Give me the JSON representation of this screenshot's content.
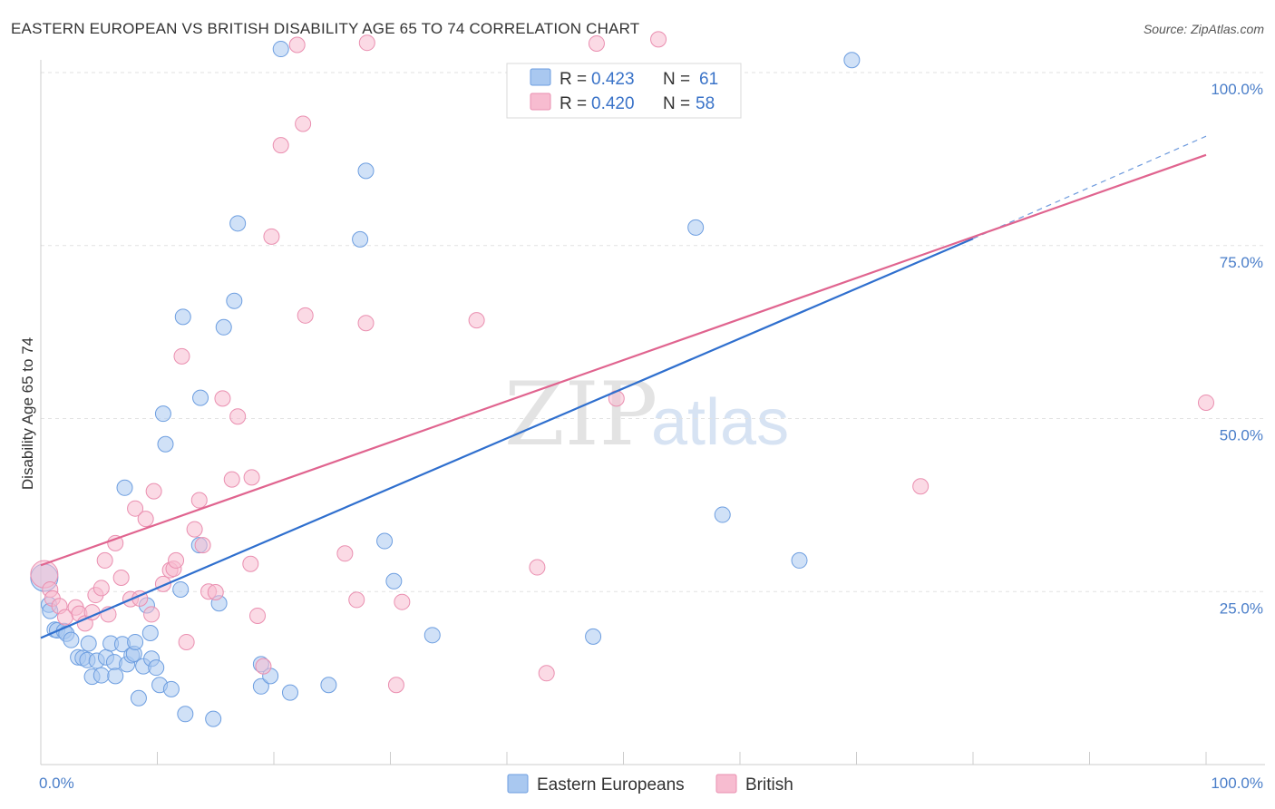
{
  "title": "EASTERN EUROPEAN VS BRITISH DISABILITY AGE 65 TO 74 CORRELATION CHART",
  "source": "Source: ZipAtlas.com",
  "watermark": {
    "part1": "ZIP",
    "part2": "atlas"
  },
  "legend_top": {
    "rows": [
      {
        "r_label": "R = ",
        "r_value": "0.423",
        "n_label": "N = ",
        "n_value": "61"
      },
      {
        "r_label": "R = ",
        "r_value": "0.420",
        "n_label": "N = ",
        "n_value": "58"
      }
    ]
  },
  "legend_bottom": [
    "Eastern Europeans",
    "British"
  ],
  "colors": {
    "blue_fill": "#a9c8f0",
    "blue_stroke": "#6d9ee0",
    "blue_line": "#2f6fce",
    "pink_fill": "#f7bcd0",
    "pink_stroke": "#ea8fb0",
    "pink_line": "#e0648f",
    "accent_text": "#3a73c8"
  },
  "chart_data": {
    "type": "scatter",
    "title": "EASTERN EUROPEAN VS BRITISH DISABILITY AGE 65 TO 74 CORRELATION CHART",
    "xlabel": "",
    "ylabel": "Disability Age 65 to 74",
    "xlim": [
      0,
      100
    ],
    "ylim": [
      0,
      100
    ],
    "x_tick_labels": [
      {
        "value": 0,
        "label": "0.0%"
      },
      {
        "value": 100,
        "label": "100.0%"
      }
    ],
    "y_tick_labels": [
      {
        "value": 100,
        "label": "100.0%"
      },
      {
        "value": 75,
        "label": "75.0%"
      },
      {
        "value": 50,
        "label": "50.0%"
      },
      {
        "value": 25,
        "label": "25.0%"
      }
    ],
    "series": [
      {
        "name": "Eastern Europeans",
        "r": 0.423,
        "n": 61,
        "trend": {
          "x0": 0,
          "y0": 18.3,
          "x1": 80,
          "y1": 76,
          "dash_to_x": 100,
          "dash_to_y": 90.8
        },
        "points": [
          [
            0.3,
            27.0
          ],
          [
            0.7,
            23.1
          ],
          [
            0.8,
            22.2
          ],
          [
            1.2,
            19.5
          ],
          [
            1.4,
            19.4
          ],
          [
            2.0,
            19.3
          ],
          [
            2.2,
            18.9
          ],
          [
            2.6,
            18.0
          ],
          [
            3.2,
            15.5
          ],
          [
            3.6,
            15.4
          ],
          [
            4.0,
            15.1
          ],
          [
            4.1,
            17.5
          ],
          [
            4.4,
            12.7
          ],
          [
            4.8,
            15.0
          ],
          [
            5.2,
            12.9
          ],
          [
            5.6,
            15.5
          ],
          [
            6.0,
            17.5
          ],
          [
            6.3,
            14.8
          ],
          [
            6.4,
            12.8
          ],
          [
            7.0,
            17.4
          ],
          [
            7.2,
            40.0
          ],
          [
            7.4,
            14.5
          ],
          [
            7.8,
            15.8
          ],
          [
            8.0,
            16.0
          ],
          [
            8.1,
            17.7
          ],
          [
            8.4,
            9.6
          ],
          [
            8.8,
            14.2
          ],
          [
            9.1,
            23.0
          ],
          [
            9.4,
            19.0
          ],
          [
            9.5,
            15.3
          ],
          [
            9.9,
            14.0
          ],
          [
            10.2,
            11.5
          ],
          [
            10.5,
            50.7
          ],
          [
            10.7,
            46.3
          ],
          [
            11.2,
            10.9
          ],
          [
            12.0,
            25.3
          ],
          [
            12.2,
            64.7
          ],
          [
            12.4,
            7.3
          ],
          [
            13.6,
            31.7
          ],
          [
            13.7,
            53.0
          ],
          [
            14.8,
            6.6
          ],
          [
            15.3,
            23.3
          ],
          [
            15.7,
            63.2
          ],
          [
            16.6,
            67.0
          ],
          [
            16.9,
            78.2
          ],
          [
            18.9,
            11.3
          ],
          [
            18.9,
            14.5
          ],
          [
            19.7,
            12.8
          ],
          [
            20.6,
            103.4
          ],
          [
            21.4,
            10.4
          ],
          [
            24.7,
            11.5
          ],
          [
            27.4,
            75.9
          ],
          [
            27.9,
            85.8
          ],
          [
            29.5,
            32.3
          ],
          [
            30.3,
            26.5
          ],
          [
            33.6,
            18.7
          ],
          [
            47.4,
            18.5
          ],
          [
            56.2,
            77.6
          ],
          [
            58.5,
            36.1
          ],
          [
            65.1,
            29.5
          ],
          [
            69.6,
            101.8
          ]
        ]
      },
      {
        "name": "British",
        "r": 0.42,
        "n": 58,
        "trend": {
          "x0": 0,
          "y0": 28.8,
          "x1": 100,
          "y1": 88.1
        },
        "points": [
          [
            0.3,
            27.5
          ],
          [
            0.8,
            25.3
          ],
          [
            1.0,
            24.0
          ],
          [
            1.6,
            22.9
          ],
          [
            2.1,
            21.3
          ],
          [
            3.0,
            22.7
          ],
          [
            3.3,
            21.8
          ],
          [
            3.8,
            20.4
          ],
          [
            4.4,
            22.0
          ],
          [
            4.7,
            24.5
          ],
          [
            5.2,
            25.5
          ],
          [
            5.5,
            29.5
          ],
          [
            5.8,
            21.7
          ],
          [
            6.4,
            32.0
          ],
          [
            6.9,
            27.0
          ],
          [
            7.7,
            23.9
          ],
          [
            8.1,
            37.0
          ],
          [
            8.5,
            24.0
          ],
          [
            9.0,
            35.5
          ],
          [
            9.5,
            21.7
          ],
          [
            9.7,
            39.5
          ],
          [
            10.5,
            26.1
          ],
          [
            11.1,
            28.1
          ],
          [
            11.4,
            28.3
          ],
          [
            11.6,
            29.5
          ],
          [
            12.1,
            59.0
          ],
          [
            12.5,
            17.7
          ],
          [
            13.2,
            34.0
          ],
          [
            13.6,
            38.2
          ],
          [
            13.9,
            31.7
          ],
          [
            14.4,
            25.0
          ],
          [
            15.0,
            24.9
          ],
          [
            15.6,
            52.9
          ],
          [
            16.4,
            41.2
          ],
          [
            16.9,
            50.3
          ],
          [
            18.0,
            29.0
          ],
          [
            18.1,
            41.5
          ],
          [
            18.6,
            21.5
          ],
          [
            19.1,
            14.2
          ],
          [
            19.8,
            76.3
          ],
          [
            20.6,
            89.5
          ],
          [
            22.0,
            104.0
          ],
          [
            22.5,
            92.6
          ],
          [
            22.7,
            64.9
          ],
          [
            26.1,
            30.5
          ],
          [
            27.1,
            23.8
          ],
          [
            27.9,
            63.8
          ],
          [
            28.0,
            104.3
          ],
          [
            30.5,
            11.5
          ],
          [
            31.0,
            23.5
          ],
          [
            37.4,
            64.2
          ],
          [
            42.6,
            28.5
          ],
          [
            43.4,
            13.2
          ],
          [
            47.7,
            104.2
          ],
          [
            49.4,
            52.9
          ],
          [
            53.0,
            104.8
          ],
          [
            75.5,
            40.2
          ],
          [
            100.0,
            52.3
          ]
        ]
      }
    ]
  }
}
